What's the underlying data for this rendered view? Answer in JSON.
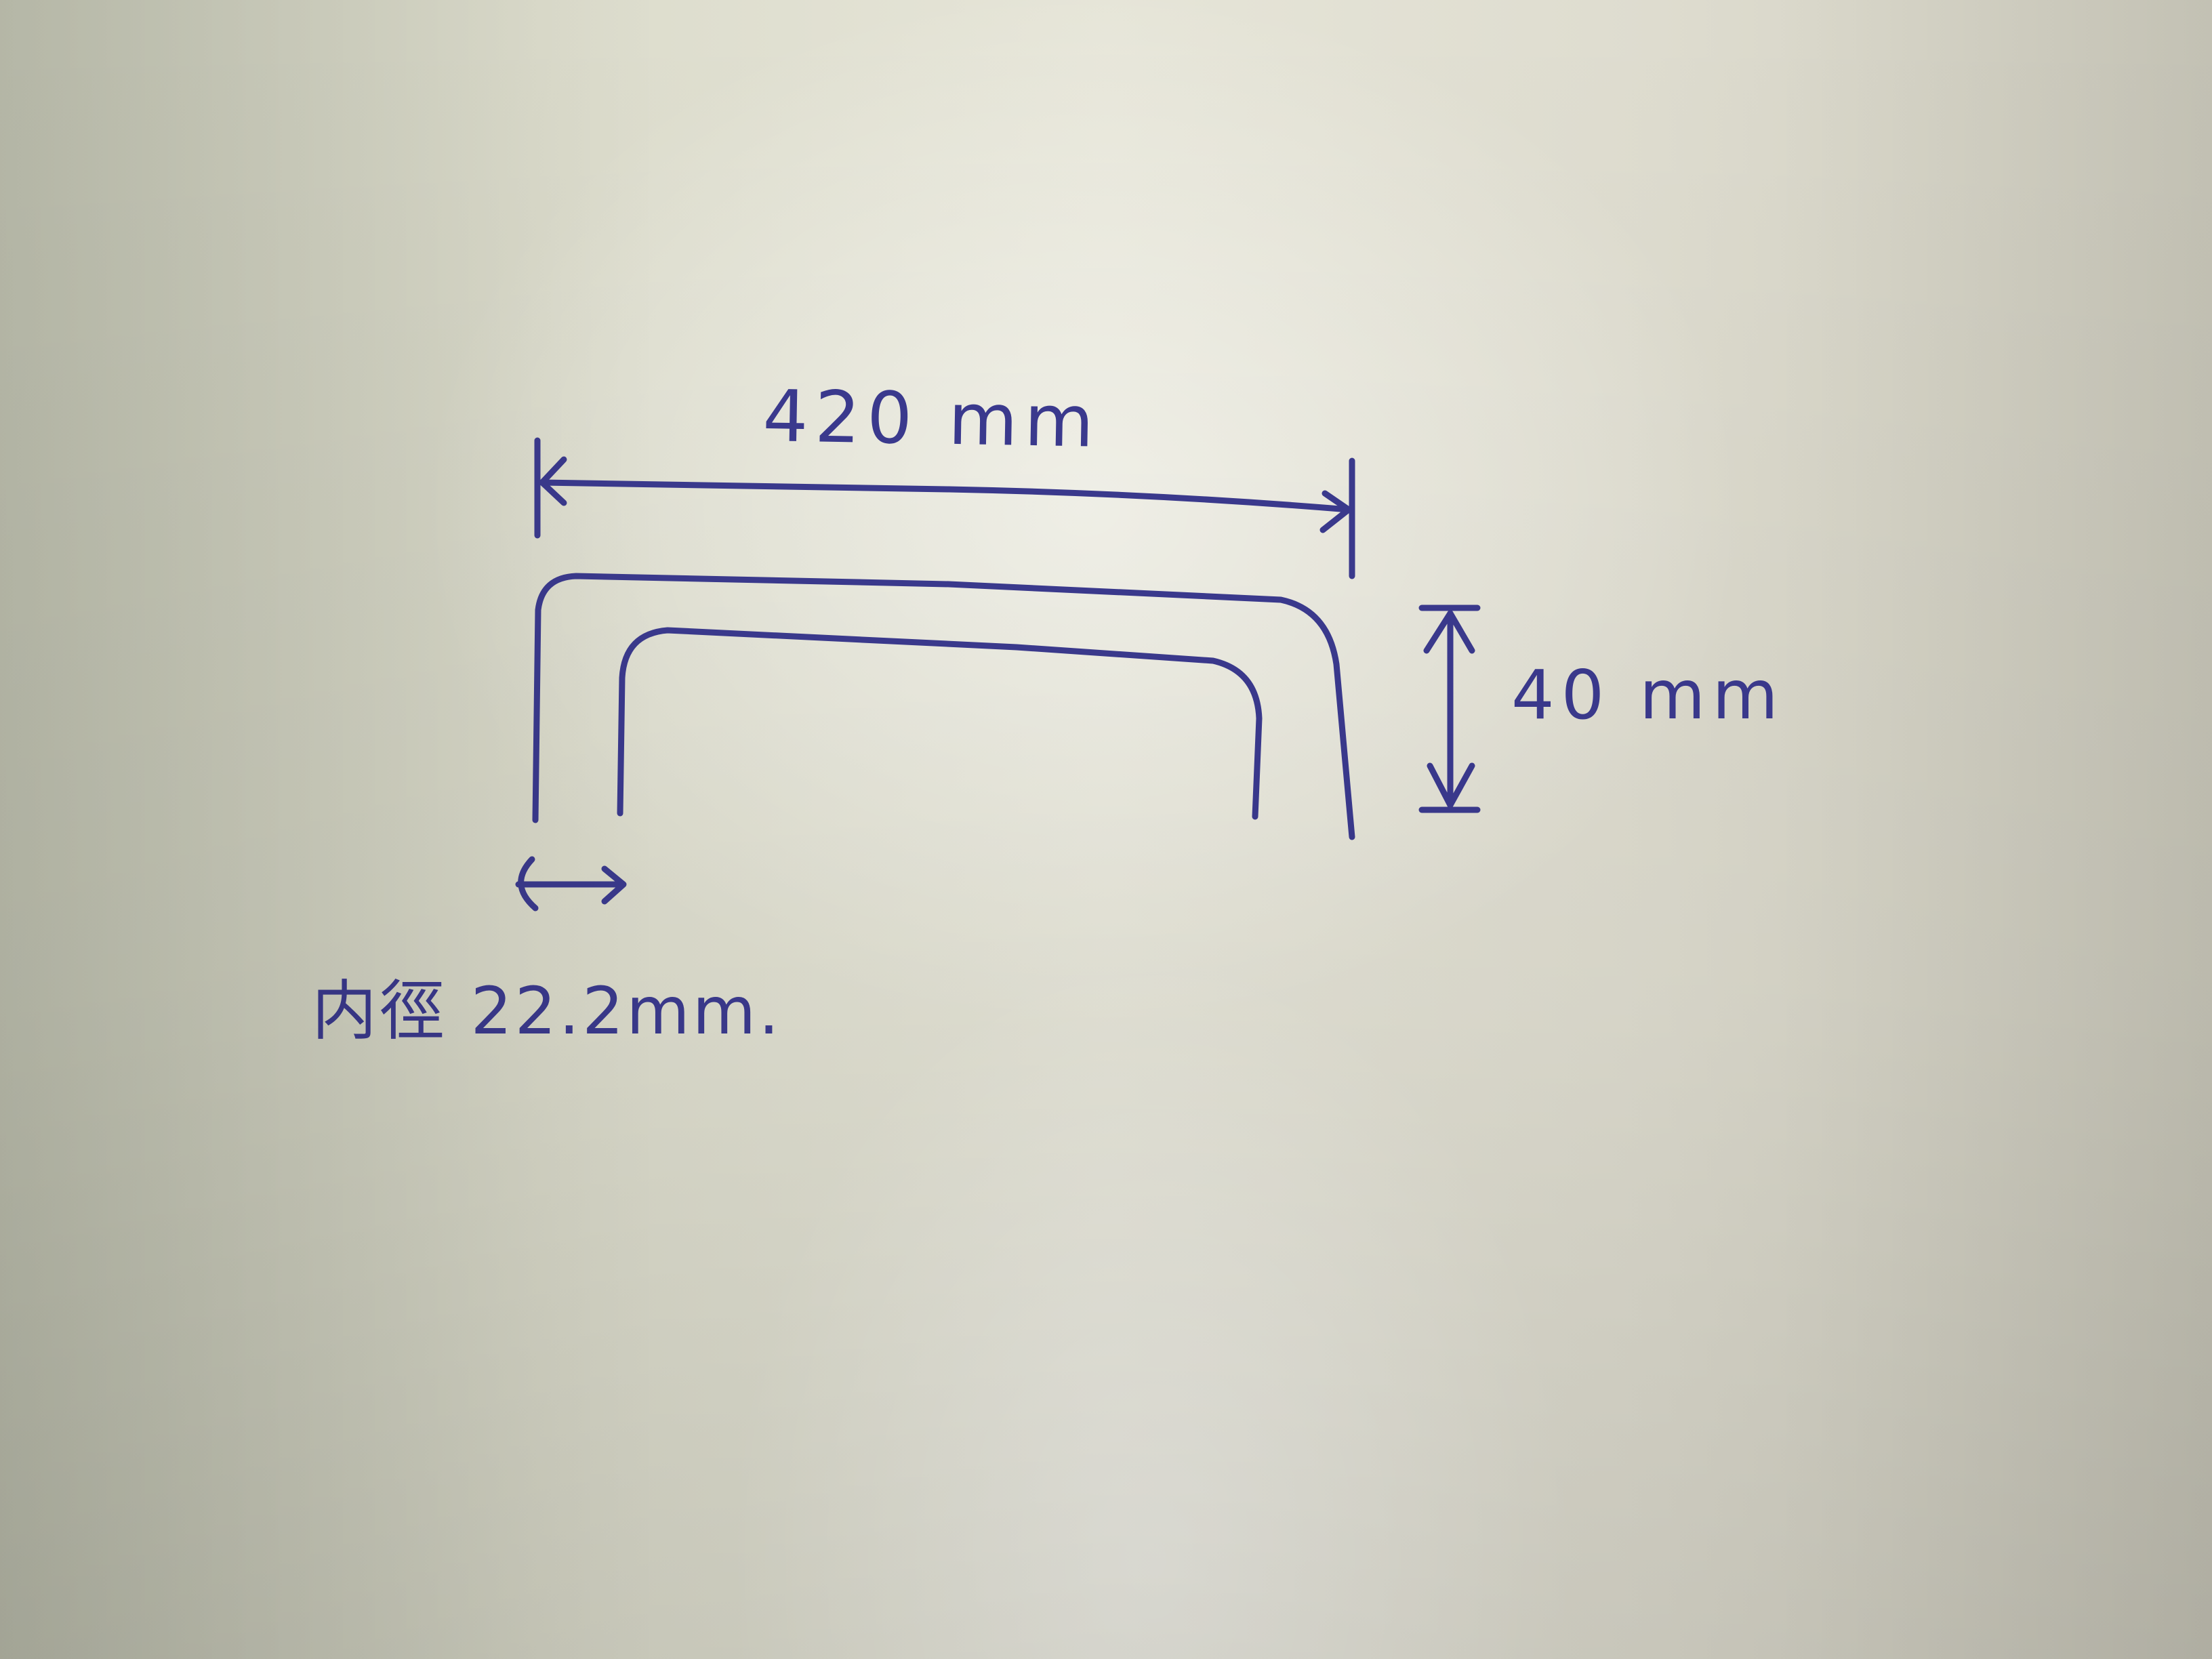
{
  "colors": {
    "ink": "#3b3a8f",
    "paper": "#e2e1d4"
  },
  "diagram": {
    "width_label": "420 mm",
    "height_label": "40 mm",
    "inner_diameter_label": "内徑 22.2mm."
  }
}
